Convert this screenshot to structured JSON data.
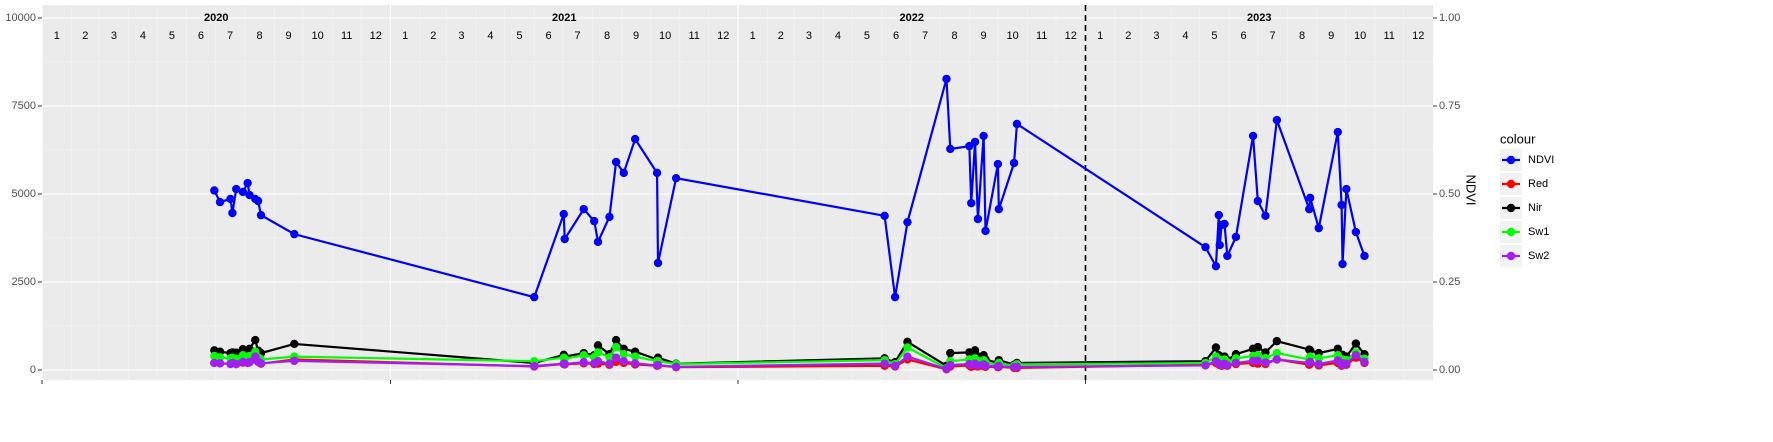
{
  "chart_data": {
    "type": "line",
    "year_labels": [
      2020,
      2021,
      2022,
      2023
    ],
    "month_labels": [
      1,
      2,
      3,
      4,
      5,
      6,
      7,
      8,
      9,
      10,
      11,
      12
    ],
    "x": [
      "2020-06-30",
      "2020-07-06",
      "2020-07-17",
      "2020-07-19",
      "2020-07-23",
      "2020-07-30",
      "2020-08-04",
      "2020-08-06",
      "2020-08-12",
      "2020-08-15",
      "2020-08-18",
      "2020-09-22",
      "2021-06-01",
      "2021-07-02",
      "2021-07-03",
      "2021-07-23",
      "2021-08-03",
      "2021-08-07",
      "2021-08-19",
      "2021-08-26",
      "2021-09-03",
      "2021-09-15",
      "2021-10-08",
      "2021-10-09",
      "2021-10-28",
      "2022-06-04",
      "2022-06-15",
      "2022-06-28",
      "2022-08-08",
      "2022-08-12",
      "2022-09-01",
      "2022-09-03",
      "2022-09-07",
      "2022-09-10",
      "2022-09-16",
      "2022-09-18",
      "2022-10-01",
      "2022-10-02",
      "2022-10-18",
      "2022-10-21",
      "2023-05-07",
      "2023-05-18",
      "2023-05-21",
      "2023-05-22",
      "2023-05-24",
      "2023-05-27",
      "2023-05-30",
      "2023-06-08",
      "2023-06-26",
      "2023-07-01",
      "2023-07-09",
      "2023-07-21",
      "2023-08-24",
      "2023-08-25",
      "2023-09-03",
      "2023-09-23",
      "2023-09-27",
      "2023-09-28",
      "2023-10-02",
      "2023-10-12",
      "2023-10-21"
    ],
    "xlim": [
      "2020-01-01",
      "2024-01-01"
    ],
    "vline_x": "2023-01-01",
    "ylim": [
      0,
      10000
    ],
    "yticks": [
      0,
      2500,
      5000,
      7500,
      10000
    ],
    "y2lim": [
      0,
      1
    ],
    "y2ticks": [
      {
        "value": 0,
        "label": "0.00"
      },
      {
        "value": 0.25,
        "label": "0.25"
      },
      {
        "value": 0.5,
        "label": "0.50"
      },
      {
        "value": 0.75,
        "label": "0.75"
      },
      {
        "value": 1,
        "label": "1.00"
      }
    ],
    "y2_label": "NDVI",
    "legend_title": "colour",
    "grid": true,
    "series": [
      {
        "name": "NDVI",
        "color": "#0000ff",
        "axis": "y2",
        "values": [
          0.51,
          0.477,
          0.486,
          0.446,
          0.514,
          0.506,
          0.531,
          0.497,
          0.486,
          0.48,
          0.44,
          0.386,
          0.207,
          0.443,
          0.372,
          0.457,
          0.423,
          0.364,
          0.435,
          0.591,
          0.56,
          0.656,
          0.56,
          0.304,
          0.545,
          0.438,
          0.207,
          0.42,
          0.827,
          0.628,
          0.636,
          0.474,
          0.648,
          0.429,
          0.665,
          0.395,
          0.585,
          0.457,
          0.588,
          0.699,
          0.349,
          0.295,
          0.44,
          0.355,
          0.412,
          0.415,
          0.324,
          0.378,
          0.665,
          0.48,
          0.438,
          0.71,
          0.457,
          0.489,
          0.403,
          0.676,
          0.469,
          0.301,
          0.514,
          0.392,
          0.324
        ]
      },
      {
        "name": "Red",
        "color": "#ff0000",
        "values": [
          200,
          190,
          180,
          200,
          170,
          210,
          200,
          220,
          300,
          230,
          180,
          300,
          100,
          170,
          160,
          190,
          170,
          180,
          150,
          230,
          200,
          160,
          120,
          130,
          80,
          120,
          100,
          300,
          20,
          100,
          130,
          90,
          120,
          100,
          110,
          90,
          80,
          90,
          60,
          60,
          150,
          200,
          160,
          140,
          120,
          150,
          120,
          170,
          200,
          180,
          170,
          300,
          150,
          180,
          130,
          200,
          120,
          160,
          150,
          350,
          200
        ]
      },
      {
        "name": "Nir",
        "color": "#000000",
        "values": [
          560,
          520,
          480,
          500,
          490,
          590,
          560,
          600,
          850,
          550,
          480,
          740,
          200,
          430,
          380,
          480,
          420,
          700,
          450,
          850,
          600,
          520,
          300,
          350,
          180,
          330,
          220,
          800,
          120,
          480,
          500,
          450,
          560,
          380,
          420,
          300,
          200,
          280,
          150,
          200,
          250,
          640,
          420,
          350,
          300,
          380,
          280,
          450,
          600,
          650,
          500,
          820,
          580,
          560,
          480,
          600,
          350,
          430,
          380,
          750,
          450
        ]
      },
      {
        "name": "Sw1",
        "color": "#00ff00",
        "values": [
          400,
          360,
          330,
          350,
          320,
          420,
          380,
          400,
          520,
          360,
          300,
          380,
          250,
          350,
          320,
          420,
          370,
          500,
          360,
          650,
          450,
          380,
          250,
          250,
          170,
          280,
          170,
          640,
          50,
          250,
          300,
          270,
          330,
          250,
          280,
          210,
          150,
          200,
          120,
          160,
          200,
          380,
          300,
          260,
          230,
          300,
          220,
          330,
          400,
          420,
          340,
          480,
          300,
          380,
          330,
          420,
          250,
          300,
          280,
          500,
          320
        ]
      },
      {
        "name": "Sw2",
        "color": "#a020f0",
        "values": [
          200,
          190,
          170,
          200,
          170,
          230,
          200,
          230,
          380,
          240,
          190,
          260,
          110,
          180,
          170,
          220,
          190,
          250,
          180,
          350,
          250,
          190,
          130,
          140,
          90,
          180,
          120,
          380,
          30,
          140,
          170,
          140,
          180,
          130,
          160,
          120,
          100,
          110,
          80,
          90,
          130,
          250,
          180,
          160,
          140,
          180,
          130,
          200,
          260,
          260,
          210,
          300,
          200,
          230,
          170,
          270,
          140,
          190,
          180,
          420,
          230
        ]
      }
    ]
  }
}
